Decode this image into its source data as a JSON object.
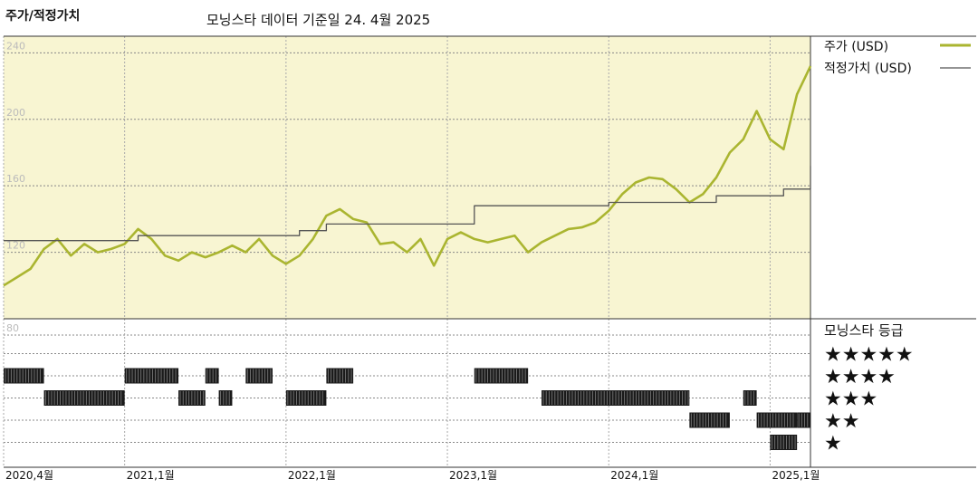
{
  "header": {
    "left_title": "주가/적정가치",
    "main_title": "모닝스타 데이터 기준일 24. 4월 2025"
  },
  "colors": {
    "price": "#aab530",
    "fair_value": "#555555",
    "plot_bg": "#f8f5d2",
    "rating_bar": "#1a1a1a",
    "grid": "#888888",
    "tick_label": "#bbbbbb"
  },
  "chart_data": [
    {
      "type": "line",
      "title": "",
      "xlabel": "",
      "ylabel": "",
      "x_ticks": [
        "2020,4월",
        "2021,1월",
        "2022,1월",
        "2023,1월",
        "2024,1월",
        "2025,1월"
      ],
      "x_tick_dates": [
        "2020-04",
        "2021-01",
        "2022-01",
        "2023-01",
        "2024-01",
        "2025-01"
      ],
      "x_range": [
        "2020-04",
        "2025-04"
      ],
      "y_ticks": [
        120,
        160,
        200,
        240
      ],
      "ylim": [
        80,
        250
      ],
      "grid": true,
      "legend_position": "right",
      "series": [
        {
          "name": "주가 (USD)",
          "color": "#aab530",
          "points": [
            [
              "2020-04",
              100
            ],
            [
              "2020-05",
              105
            ],
            [
              "2020-06",
              110
            ],
            [
              "2020-07",
              122
            ],
            [
              "2020-08",
              128
            ],
            [
              "2020-09",
              118
            ],
            [
              "2020-10",
              125
            ],
            [
              "2020-11",
              120
            ],
            [
              "2020-12",
              122
            ],
            [
              "2021-01",
              125
            ],
            [
              "2021-02",
              134
            ],
            [
              "2021-03",
              128
            ],
            [
              "2021-04",
              118
            ],
            [
              "2021-05",
              115
            ],
            [
              "2021-06",
              120
            ],
            [
              "2021-07",
              117
            ],
            [
              "2021-08",
              120
            ],
            [
              "2021-09",
              124
            ],
            [
              "2021-10",
              120
            ],
            [
              "2021-11",
              128
            ],
            [
              "2021-12",
              118
            ],
            [
              "2022-01",
              113
            ],
            [
              "2022-02",
              118
            ],
            [
              "2022-03",
              128
            ],
            [
              "2022-04",
              142
            ],
            [
              "2022-05",
              146
            ],
            [
              "2022-06",
              140
            ],
            [
              "2022-07",
              138
            ],
            [
              "2022-08",
              125
            ],
            [
              "2022-09",
              126
            ],
            [
              "2022-10",
              120
            ],
            [
              "2022-11",
              128
            ],
            [
              "2022-12",
              112
            ],
            [
              "2023-01",
              128
            ],
            [
              "2023-02",
              132
            ],
            [
              "2023-03",
              128
            ],
            [
              "2023-04",
              126
            ],
            [
              "2023-05",
              128
            ],
            [
              "2023-06",
              130
            ],
            [
              "2023-07",
              120
            ],
            [
              "2023-08",
              126
            ],
            [
              "2023-09",
              130
            ],
            [
              "2023-10",
              134
            ],
            [
              "2023-11",
              135
            ],
            [
              "2023-12",
              138
            ],
            [
              "2024-01",
              145
            ],
            [
              "2024-02",
              155
            ],
            [
              "2024-03",
              162
            ],
            [
              "2024-04",
              165
            ],
            [
              "2024-05",
              164
            ],
            [
              "2024-06",
              158
            ],
            [
              "2024-07",
              150
            ],
            [
              "2024-08",
              155
            ],
            [
              "2024-09",
              165
            ],
            [
              "2024-10",
              180
            ],
            [
              "2024-11",
              188
            ],
            [
              "2024-12",
              205
            ],
            [
              "2025-01",
              188
            ],
            [
              "2025-02",
              182
            ],
            [
              "2025-03",
              215
            ],
            [
              "2025-04",
              232
            ]
          ]
        },
        {
          "name": "적정가치 (USD)",
          "color": "#555555",
          "points": [
            [
              "2020-04",
              127
            ],
            [
              "2021-01",
              127
            ],
            [
              "2021-02",
              130
            ],
            [
              "2022-01",
              130
            ],
            [
              "2022-02",
              133
            ],
            [
              "2022-04",
              137
            ],
            [
              "2022-06",
              137
            ],
            [
              "2023-03",
              148
            ],
            [
              "2024-01",
              150
            ],
            [
              "2024-08",
              150
            ],
            [
              "2024-09",
              154
            ],
            [
              "2025-01",
              154
            ],
            [
              "2025-02",
              158
            ],
            [
              "2025-04",
              158
            ],
            [
              "2025-04",
              172
            ]
          ]
        }
      ]
    },
    {
      "type": "timeline",
      "title": "모닝스타 등급",
      "levels": [
        "★★★★★",
        "★★★★",
        "★★★",
        "★★",
        "★"
      ],
      "y_tick_top": 80,
      "segments": [
        {
          "start": "2020-04",
          "end": "2020-07",
          "stars": 4
        },
        {
          "start": "2020-07",
          "end": "2021-01",
          "stars": 3
        },
        {
          "start": "2021-01",
          "end": "2021-05",
          "stars": 4
        },
        {
          "start": "2021-05",
          "end": "2021-07",
          "stars": 3
        },
        {
          "start": "2021-07",
          "end": "2021-08",
          "stars": 4
        },
        {
          "start": "2021-08",
          "end": "2021-09",
          "stars": 3
        },
        {
          "start": "2021-10",
          "end": "2021-12",
          "stars": 4
        },
        {
          "start": "2022-01",
          "end": "2022-04",
          "stars": 3
        },
        {
          "start": "2022-04",
          "end": "2022-06",
          "stars": 4
        },
        {
          "start": "2023-03",
          "end": "2023-07",
          "stars": 4
        },
        {
          "start": "2023-08",
          "end": "2024-07",
          "stars": 3
        },
        {
          "start": "2024-07",
          "end": "2024-10",
          "stars": 2
        },
        {
          "start": "2024-11",
          "end": "2024-12",
          "stars": 3
        },
        {
          "start": "2024-12",
          "end": "2025-03",
          "stars": 2
        },
        {
          "start": "2025-01",
          "end": "2025-03",
          "stars": 1
        },
        {
          "start": "2025-03",
          "end": "2025-04",
          "stars": 2
        }
      ]
    }
  ]
}
